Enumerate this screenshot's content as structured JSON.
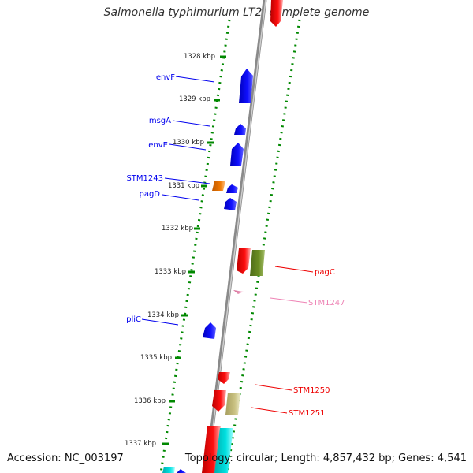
{
  "header": {
    "title": "Salmonella typhimurium LT2, complete genome"
  },
  "footer": {
    "accession": "Accession: NC_003197",
    "summary": "Topology: circular; Length: 4,857,432 bp; Genes: 4,541"
  },
  "ruler": {
    "ticks": [
      "1328 kbp",
      "1329 kbp",
      "1330 kbp",
      "1331 kbp",
      "1332 kbp",
      "1333 kbp",
      "1334 kbp",
      "1335 kbp",
      "1336 kbp",
      "1337 kbp"
    ]
  },
  "gene_labels": {
    "envF": "envF",
    "msgA": "msgA",
    "envE": "envE",
    "STM1243": "STM1243",
    "pagD": "pagD",
    "pliC": "pliC",
    "pagC": "pagC",
    "STM1247": "STM1247",
    "STM1250": "STM1250",
    "STM1251": "STM1251"
  },
  "colors": {
    "reverse_strand": "#0000ee",
    "forward_strand": "#ee0000",
    "STM1243": "#ee7700",
    "pagC": "#6b8e23",
    "STM1247": "#ee82b4",
    "STM1251": "#c8c080",
    "cyan": "#00e0e0",
    "dots": "#008800"
  }
}
